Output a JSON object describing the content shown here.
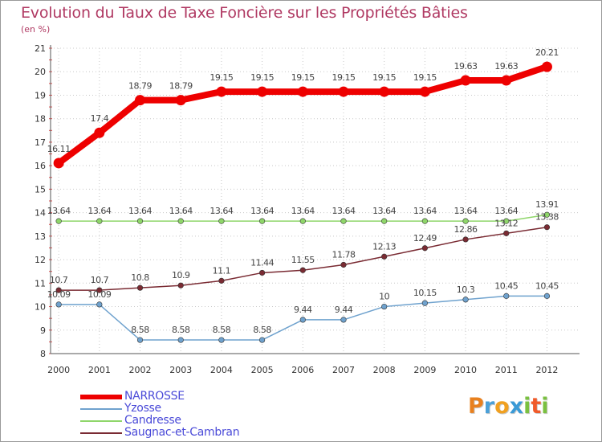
{
  "chart_data": {
    "type": "line",
    "title": "Evolution du Taux de Taxe Foncière sur les Propriétés Bâties",
    "subtitle": "(en %)",
    "x": [
      "2000",
      "2001",
      "2002",
      "2003",
      "2004",
      "2005",
      "2006",
      "2007",
      "2008",
      "2009",
      "2010",
      "2011",
      "2012"
    ],
    "y_ticks": [
      "8",
      "9",
      "10",
      "11",
      "12",
      "13",
      "14",
      "15",
      "16",
      "17",
      "18",
      "19",
      "20",
      "21"
    ],
    "ylim": [
      8,
      21
    ],
    "grid": true,
    "legend_position": "bottom-left",
    "series": [
      {
        "name": "NARROSSE",
        "color": "#ee0000",
        "values": [
          16.11,
          17.4,
          18.79,
          18.79,
          19.15,
          19.15,
          19.15,
          19.15,
          19.15,
          19.15,
          19.63,
          19.63,
          20.21
        ],
        "labels": [
          "16.11",
          "17.4",
          "18.79",
          "18.79",
          "19.15",
          "19.15",
          "19.15",
          "19.15",
          "19.15",
          "19.15",
          "19.63",
          "19.63",
          "20.21"
        ]
      },
      {
        "name": "Yzosse",
        "color": "#6fa2ce",
        "values": [
          10.09,
          10.09,
          8.58,
          8.58,
          8.58,
          8.58,
          9.44,
          9.44,
          10,
          10.15,
          10.3,
          10.45,
          10.45
        ],
        "labels": [
          "10.09",
          "10.09",
          "8.58",
          "8.58",
          "8.58",
          "8.58",
          "9.44",
          "9.44",
          "10",
          "10.15",
          "10.3",
          "10.45",
          "10.45"
        ]
      },
      {
        "name": "Candresse",
        "color": "#8fd66a",
        "values": [
          13.64,
          13.64,
          13.64,
          13.64,
          13.64,
          13.64,
          13.64,
          13.64,
          13.64,
          13.64,
          13.64,
          13.64,
          13.91
        ],
        "labels": [
          "13.64",
          "13.64",
          "13.64",
          "13.64",
          "13.64",
          "13.64",
          "13.64",
          "13.64",
          "13.64",
          "13.64",
          "13.64",
          "13.64",
          "13.91"
        ]
      },
      {
        "name": "Saugnac-et-Cambran",
        "color": "#7a2b33",
        "values": [
          10.7,
          10.7,
          10.8,
          10.9,
          11.1,
          11.44,
          11.55,
          11.78,
          12.13,
          12.49,
          12.86,
          13.12,
          13.38
        ],
        "labels": [
          "10.7",
          "10.7",
          "10.8",
          "10.9",
          "11.1",
          "11.44",
          "11.55",
          "11.78",
          "12.13",
          "12.49",
          "12.86",
          "13.12",
          "13.38"
        ]
      }
    ]
  },
  "logo": {
    "letters": [
      "P",
      "r",
      "o",
      "x",
      "i",
      "t",
      "i"
    ],
    "colors": [
      "#e8801e",
      "#4aa0d8",
      "#f0a020",
      "#3a9ad6",
      "#7ac040",
      "#f05a2a",
      "#7ac040"
    ]
  }
}
